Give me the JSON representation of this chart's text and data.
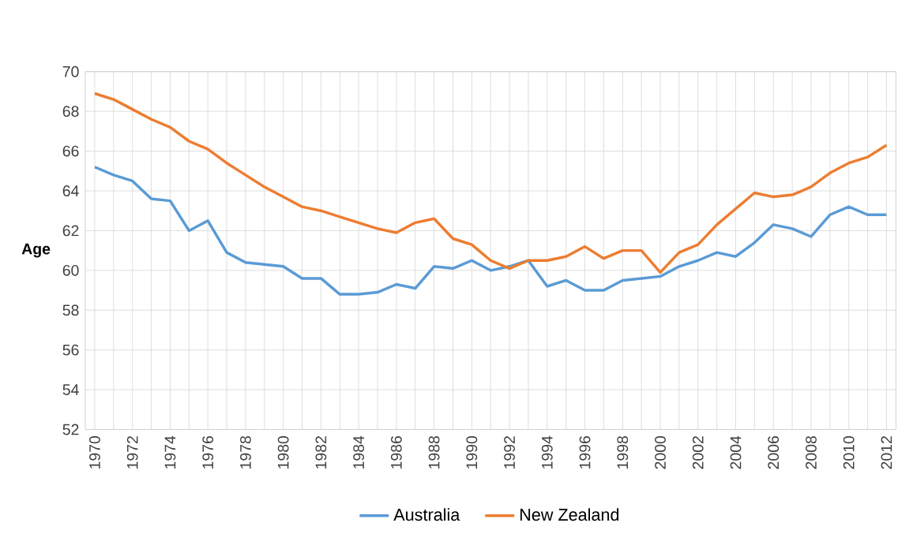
{
  "chart_data": {
    "type": "line",
    "ylabel": "Age",
    "categories": [
      "1970",
      null,
      "1972",
      null,
      "1974",
      null,
      "1976",
      null,
      "1978",
      null,
      "1980",
      null,
      "1982",
      null,
      "1984",
      null,
      "1986",
      null,
      "1988",
      null,
      "1990",
      null,
      "1992",
      null,
      "1994",
      null,
      "1996",
      null,
      "1998",
      null,
      "2000",
      null,
      "2002",
      null,
      "2004",
      null,
      "2006",
      null,
      "2008",
      null,
      "2010",
      null,
      "2012"
    ],
    "series": [
      {
        "name": "Australia",
        "color": "#5b9bd5",
        "values": [
          65.2,
          64.8,
          64.5,
          63.6,
          63.5,
          62.0,
          62.5,
          60.9,
          60.4,
          60.3,
          60.2,
          59.6,
          59.6,
          58.8,
          58.8,
          58.9,
          59.3,
          59.1,
          60.2,
          60.1,
          60.5,
          60.0,
          60.2,
          60.5,
          59.2,
          59.5,
          59.0,
          59.0,
          59.5,
          59.6,
          59.7,
          60.2,
          60.5,
          60.9,
          60.7,
          61.4,
          62.3,
          62.1,
          61.7,
          62.8,
          63.2,
          62.8,
          62.8
        ]
      },
      {
        "name": "New Zealand",
        "color": "#ed7d31",
        "values": [
          68.9,
          68.6,
          68.1,
          67.6,
          67.2,
          66.5,
          66.1,
          65.4,
          64.8,
          64.2,
          63.7,
          63.2,
          63.0,
          62.7,
          62.4,
          62.1,
          61.9,
          62.4,
          62.6,
          61.6,
          61.3,
          60.5,
          60.1,
          60.5,
          60.5,
          60.7,
          61.2,
          60.6,
          61.0,
          61.0,
          59.9,
          60.9,
          61.3,
          62.3,
          63.1,
          63.9,
          63.7,
          63.8,
          64.2,
          64.9,
          65.4,
          65.7,
          66.3
        ]
      }
    ],
    "ylim": [
      52,
      70
    ],
    "yticks": [
      52,
      54,
      56,
      58,
      60,
      62,
      64,
      66,
      68,
      70
    ],
    "grid": true,
    "legend": "bottom",
    "marker": "none",
    "line_style": "solid"
  }
}
